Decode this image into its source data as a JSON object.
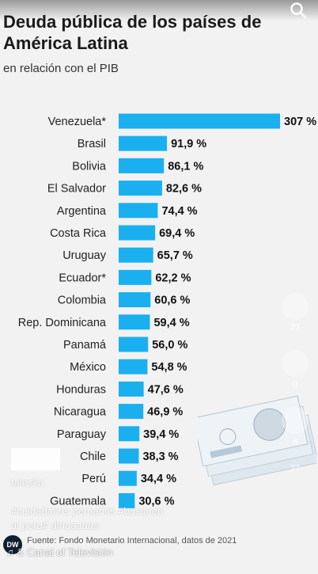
{
  "chart_data": {
    "type": "bar",
    "orientation": "horizontal",
    "title": "Deuda pública de los países de América Latina",
    "subtitle": "en relación con el PIB",
    "categories": [
      "Venezuela*",
      "Brasil",
      "Bolivia",
      "El Salvador",
      "Argentina",
      "Costa Rica",
      "Uruguay",
      "Ecuador*",
      "Colombia",
      "Rep. Dominicana",
      "Panamá",
      "México",
      "Honduras",
      "Nicaragua",
      "Paraguay",
      "Chile",
      "Perú",
      "Guatemala"
    ],
    "values": [
      307,
      91.9,
      86.1,
      82.6,
      74.4,
      69.4,
      65.7,
      62.2,
      60.6,
      59.4,
      56.0,
      54.8,
      47.6,
      46.9,
      39.4,
      38.3,
      34.4,
      30.6
    ],
    "value_labels": [
      "307 %",
      "91,9 %",
      "86,1 %",
      "82,6 %",
      "74,4 %",
      "69,4 %",
      "65,7 %",
      "62,2 %",
      "60,6 %",
      "59,4 %",
      "56,0 %",
      "54,8 %",
      "47,6 %",
      "46,9 %",
      "39,4 %",
      "38,3 %",
      "34,4 %",
      "30,6 %"
    ],
    "xlim": [
      0,
      307
    ],
    "grid": false,
    "legend": "none",
    "bar_color": "#1ab0f0",
    "source": "Fuente: Fondo Monetario Internacional, datos de 2021"
  },
  "overlay": {
    "username": "taleska",
    "caption_line1": "#cuidadanos peruanos #busquen",
    "caption_line2": "al peru# dinaaaaaa",
    "sound": "♫ & Canal of Televisión",
    "counts": [
      "27",
      "0",
      "8",
      "27"
    ],
    "logo": "DW"
  }
}
